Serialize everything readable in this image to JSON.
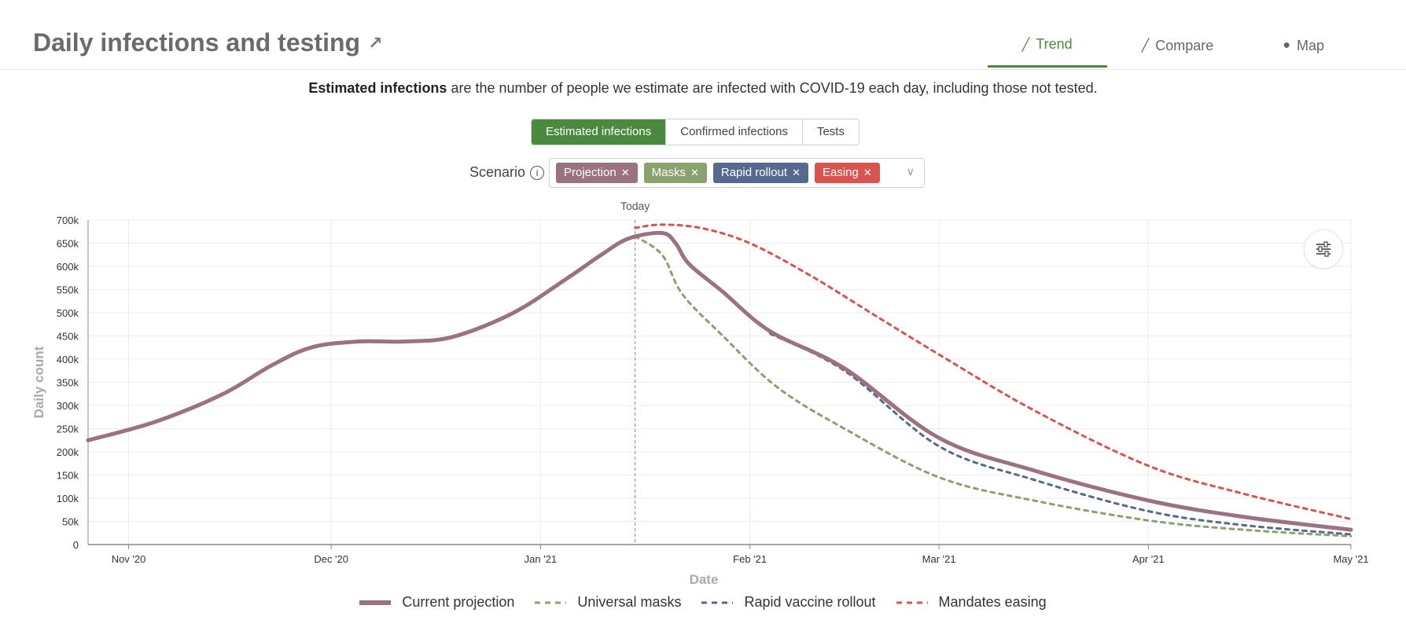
{
  "header": {
    "title": "Daily infections and testing",
    "tabs": [
      {
        "label": "Trend",
        "icon": "line-chart-icon",
        "active": true
      },
      {
        "label": "Compare",
        "icon": "compare-chart-icon",
        "active": false
      },
      {
        "label": "Map",
        "icon": "globe-icon",
        "active": false
      }
    ]
  },
  "description": {
    "bold": "Estimated infections",
    "rest": " are the number of people we estimate are infected with COVID-19 each day, including those not tested."
  },
  "metric_toggle": [
    "Estimated infections",
    "Confirmed infections",
    "Tests"
  ],
  "scenario": {
    "label": "Scenario",
    "chips": [
      {
        "label": "Projection",
        "color": "#9b7280"
      },
      {
        "label": "Masks",
        "color": "#8aa36e"
      },
      {
        "label": "Rapid rollout",
        "color": "#566a8f"
      },
      {
        "label": "Easing",
        "color": "#d9534f"
      }
    ]
  },
  "colors": {
    "accent": "#4a8a3e",
    "current": "#9b7280",
    "masks": "#8aa36e",
    "rapid": "#566a8f",
    "easing": "#d9534f"
  },
  "chart_data": {
    "type": "line",
    "xlabel": "Date",
    "ylabel": "Daily count",
    "x_ticks": [
      "Nov '20",
      "Dec '20",
      "Jan '21",
      "Feb '21",
      "Mar '21",
      "Apr '21",
      "May '21"
    ],
    "x_tick_dates": [
      "2020-11-01",
      "2020-12-01",
      "2021-01-01",
      "2021-02-01",
      "2021-03-01",
      "2021-04-01",
      "2021-05-01"
    ],
    "y_ticks": [
      "0",
      "50k",
      "100k",
      "150k",
      "200k",
      "250k",
      "300k",
      "350k",
      "400k",
      "450k",
      "500k",
      "550k",
      "600k",
      "650k",
      "700k"
    ],
    "ylim": [
      0,
      700000
    ],
    "xlim": [
      "2020-10-26",
      "2021-05-01"
    ],
    "grid": true,
    "annotation": {
      "label": "Today",
      "date": "2021-01-15"
    },
    "legend_position": "bottom",
    "series": [
      {
        "name": "Current projection",
        "style": "solid",
        "color": "#9b7280",
        "points": [
          [
            "2020-10-26",
            225000
          ],
          [
            "2020-11-05",
            265000
          ],
          [
            "2020-11-15",
            325000
          ],
          [
            "2020-11-22",
            385000
          ],
          [
            "2020-11-28",
            425000
          ],
          [
            "2020-12-05",
            438000
          ],
          [
            "2020-12-12",
            438000
          ],
          [
            "2020-12-19",
            448000
          ],
          [
            "2020-12-28",
            500000
          ],
          [
            "2021-01-05",
            575000
          ],
          [
            "2021-01-10",
            625000
          ],
          [
            "2021-01-14",
            660000
          ],
          [
            "2021-01-19",
            672000
          ],
          [
            "2021-01-21",
            650000
          ],
          [
            "2021-01-23",
            605000
          ],
          [
            "2021-01-28",
            545000
          ],
          [
            "2021-02-04",
            460000
          ],
          [
            "2021-02-15",
            380000
          ],
          [
            "2021-03-01",
            230000
          ],
          [
            "2021-03-15",
            160000
          ],
          [
            "2021-04-01",
            95000
          ],
          [
            "2021-04-15",
            60000
          ],
          [
            "2021-05-01",
            32000
          ]
        ]
      },
      {
        "name": "Universal masks",
        "style": "dashed",
        "color": "#8aa36e",
        "points": [
          [
            "2021-01-15",
            665000
          ],
          [
            "2021-01-19",
            625000
          ],
          [
            "2021-01-22",
            540000
          ],
          [
            "2021-01-28",
            450000
          ],
          [
            "2021-02-05",
            340000
          ],
          [
            "2021-02-15",
            250000
          ],
          [
            "2021-03-01",
            145000
          ],
          [
            "2021-03-15",
            95000
          ],
          [
            "2021-04-01",
            52000
          ],
          [
            "2021-04-15",
            32000
          ],
          [
            "2021-05-01",
            18000
          ]
        ]
      },
      {
        "name": "Rapid vaccine rollout",
        "style": "dashed",
        "color": "#566a8f",
        "points": [
          [
            "2021-02-04",
            455000
          ],
          [
            "2021-02-15",
            375000
          ],
          [
            "2021-03-01",
            212000
          ],
          [
            "2021-03-15",
            140000
          ],
          [
            "2021-04-01",
            72000
          ],
          [
            "2021-04-15",
            42000
          ],
          [
            "2021-05-01",
            22000
          ]
        ]
      },
      {
        "name": "Mandates easing",
        "style": "dashed",
        "color": "#d9534f",
        "points": [
          [
            "2021-01-15",
            683000
          ],
          [
            "2021-01-19",
            690000
          ],
          [
            "2021-01-25",
            682000
          ],
          [
            "2021-02-01",
            650000
          ],
          [
            "2021-02-10",
            580000
          ],
          [
            "2021-02-20",
            490000
          ],
          [
            "2021-03-01",
            410000
          ],
          [
            "2021-03-15",
            290000
          ],
          [
            "2021-04-01",
            170000
          ],
          [
            "2021-04-15",
            110000
          ],
          [
            "2021-05-01",
            55000
          ]
        ]
      }
    ]
  }
}
